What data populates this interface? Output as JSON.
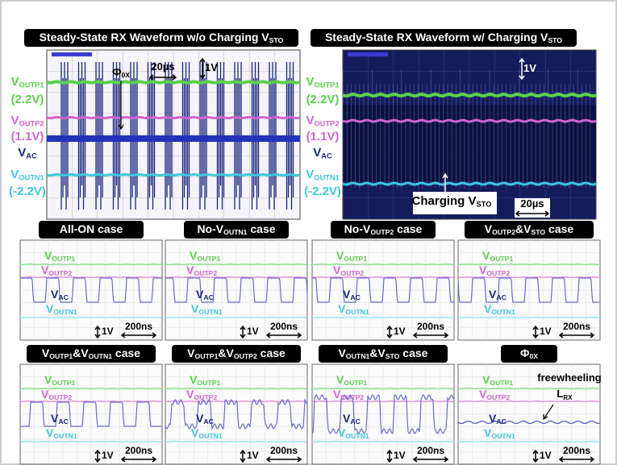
{
  "top_panels": [
    {
      "title": [
        {
          "t": "Steady-State RX Waveform w/o Charging V"
        },
        {
          "s": "STO"
        }
      ],
      "labels": [
        [
          {
            "t": "V"
          },
          {
            "s": "OUTP1"
          }
        ],
        [
          {
            "t": "(2.2V)"
          }
        ],
        [
          {
            "t": "V"
          },
          {
            "s": "OUTP2"
          }
        ],
        [
          {
            "t": "(1.1V)"
          }
        ],
        [
          {
            "t": "V"
          },
          {
            "s": "AC"
          }
        ],
        [
          {
            "t": "V"
          },
          {
            "s": "OUTN1"
          }
        ],
        [
          {
            "t": "(-2.2V)"
          }
        ]
      ],
      "annotations": [
        [
          {
            "t": "Φ"
          },
          {
            "s": "0X"
          }
        ],
        [
          {
            "t": "20µs"
          }
        ],
        [
          {
            "t": "1V"
          }
        ]
      ]
    },
    {
      "title": [
        {
          "t": "Steady-State RX Waveform w/ Charging V"
        },
        {
          "s": "STO"
        }
      ],
      "labels": [
        [
          {
            "t": "V"
          },
          {
            "s": "OUTP1"
          }
        ],
        [
          {
            "t": "(2.2V)"
          }
        ],
        [
          {
            "t": "V"
          },
          {
            "s": "OUTP2"
          }
        ],
        [
          {
            "t": "(1.1V)"
          }
        ],
        [
          {
            "t": "V"
          },
          {
            "s": "AC"
          }
        ],
        [
          {
            "t": "V"
          },
          {
            "s": "OUTN1"
          }
        ],
        [
          {
            "t": "(-2.2V)"
          }
        ]
      ],
      "annotations": [
        [
          {
            "t": "1V"
          }
        ],
        [
          {
            "t": "Charging V"
          },
          {
            "s": "STO"
          }
        ],
        [
          {
            "t": "20µs"
          }
        ]
      ]
    }
  ],
  "small_panels": [
    {
      "title": [
        {
          "t": "All-ON case"
        }
      ],
      "labels": [
        [
          {
            "t": "V"
          },
          {
            "s": "OUTP1"
          }
        ],
        [
          {
            "t": "V"
          },
          {
            "s": "OUTP2"
          }
        ],
        [
          {
            "t": "V"
          },
          {
            "s": "AC"
          }
        ],
        [
          {
            "t": "V"
          },
          {
            "s": "OUTN1"
          }
        ]
      ],
      "scale": "1V",
      "time": "200ns"
    },
    {
      "title": [
        {
          "t": "No-V"
        },
        {
          "s": "OUTN1"
        },
        {
          "t": " case"
        }
      ],
      "labels": [
        [
          {
            "t": "V"
          },
          {
            "s": "OUTP1"
          }
        ],
        [
          {
            "t": "V"
          },
          {
            "s": "OUTP2"
          }
        ],
        [
          {
            "t": "V"
          },
          {
            "s": "AC"
          }
        ],
        [
          {
            "t": "V"
          },
          {
            "s": "OUTN1"
          }
        ]
      ],
      "scale": "1V",
      "time": "200ns"
    },
    {
      "title": [
        {
          "t": "No-V"
        },
        {
          "s": "OUTP2"
        },
        {
          "t": " case"
        }
      ],
      "labels": [
        [
          {
            "t": "V"
          },
          {
            "s": "OUTP1"
          }
        ],
        [
          {
            "t": "V"
          },
          {
            "s": "OUTP2"
          }
        ],
        [
          {
            "t": "V"
          },
          {
            "s": "AC"
          }
        ],
        [
          {
            "t": "V"
          },
          {
            "s": "OUTN1"
          }
        ]
      ],
      "scale": "1V",
      "time": "200ns"
    },
    {
      "title": [
        {
          "t": "V"
        },
        {
          "s": "OUTP2"
        },
        {
          "t": "&V"
        },
        {
          "s": "STO"
        },
        {
          "t": " case"
        }
      ],
      "labels": [
        [
          {
            "t": "V"
          },
          {
            "s": "OUTP1"
          }
        ],
        [
          {
            "t": "V"
          },
          {
            "s": "OUTP2"
          }
        ],
        [
          {
            "t": "V"
          },
          {
            "s": "AC"
          }
        ],
        [
          {
            "t": "V"
          },
          {
            "s": "OUTN1"
          }
        ]
      ],
      "scale": "1V",
      "time": "200ns"
    },
    {
      "title": [
        {
          "t": "V"
        },
        {
          "s": "OUTP1"
        },
        {
          "t": "&V"
        },
        {
          "s": "OUTN1"
        },
        {
          "t": " case"
        }
      ],
      "labels": [
        [
          {
            "t": "V"
          },
          {
            "s": "OUTP1"
          }
        ],
        [
          {
            "t": "V"
          },
          {
            "s": "OUTP2"
          }
        ],
        [
          {
            "t": "V"
          },
          {
            "s": "AC"
          }
        ],
        [
          {
            "t": "V"
          },
          {
            "s": "OUTN1"
          }
        ]
      ],
      "scale": "1V",
      "time": "200ns"
    },
    {
      "title": [
        {
          "t": "V"
        },
        {
          "s": "OUTP1"
        },
        {
          "t": "&V"
        },
        {
          "s": "OUTP2"
        },
        {
          "t": " case"
        }
      ],
      "labels": [
        [
          {
            "t": "V"
          },
          {
            "s": "OUTP1"
          }
        ],
        [
          {
            "t": "V"
          },
          {
            "s": "OUTP2"
          }
        ],
        [
          {
            "t": "V"
          },
          {
            "s": "AC"
          }
        ],
        [
          {
            "t": "V"
          },
          {
            "s": "OUTN1"
          }
        ]
      ],
      "scale": "1V",
      "time": "200ns"
    },
    {
      "title": [
        {
          "t": "V"
        },
        {
          "s": "OUTN1"
        },
        {
          "t": "&V"
        },
        {
          "s": "STO"
        },
        {
          "t": " case"
        }
      ],
      "labels": [
        [
          {
            "t": "V"
          },
          {
            "s": "OUTP1"
          }
        ],
        [
          {
            "t": "V"
          },
          {
            "s": "OUTP2"
          }
        ],
        [
          {
            "t": "V"
          },
          {
            "s": "AC"
          }
        ],
        [
          {
            "t": "V"
          },
          {
            "s": "OUTN1"
          }
        ]
      ],
      "scale": "1V",
      "time": "200ns"
    },
    {
      "title": [
        {
          "t": "Φ"
        },
        {
          "s": "0X"
        }
      ],
      "labels": [
        [
          {
            "t": "V"
          },
          {
            "s": "OUTP1"
          }
        ],
        [
          {
            "t": "V"
          },
          {
            "s": "OUTP2"
          }
        ],
        [
          {
            "t": "V"
          },
          {
            "s": "AC"
          }
        ],
        [
          {
            "t": "V"
          },
          {
            "s": "OUTN1"
          }
        ]
      ],
      "scale": "1V",
      "time": "200ns",
      "annotations": [
        [
          {
            "t": "freewheeling"
          }
        ],
        [
          {
            "t": "L"
          },
          {
            "s": "RX"
          }
        ]
      ]
    }
  ]
}
